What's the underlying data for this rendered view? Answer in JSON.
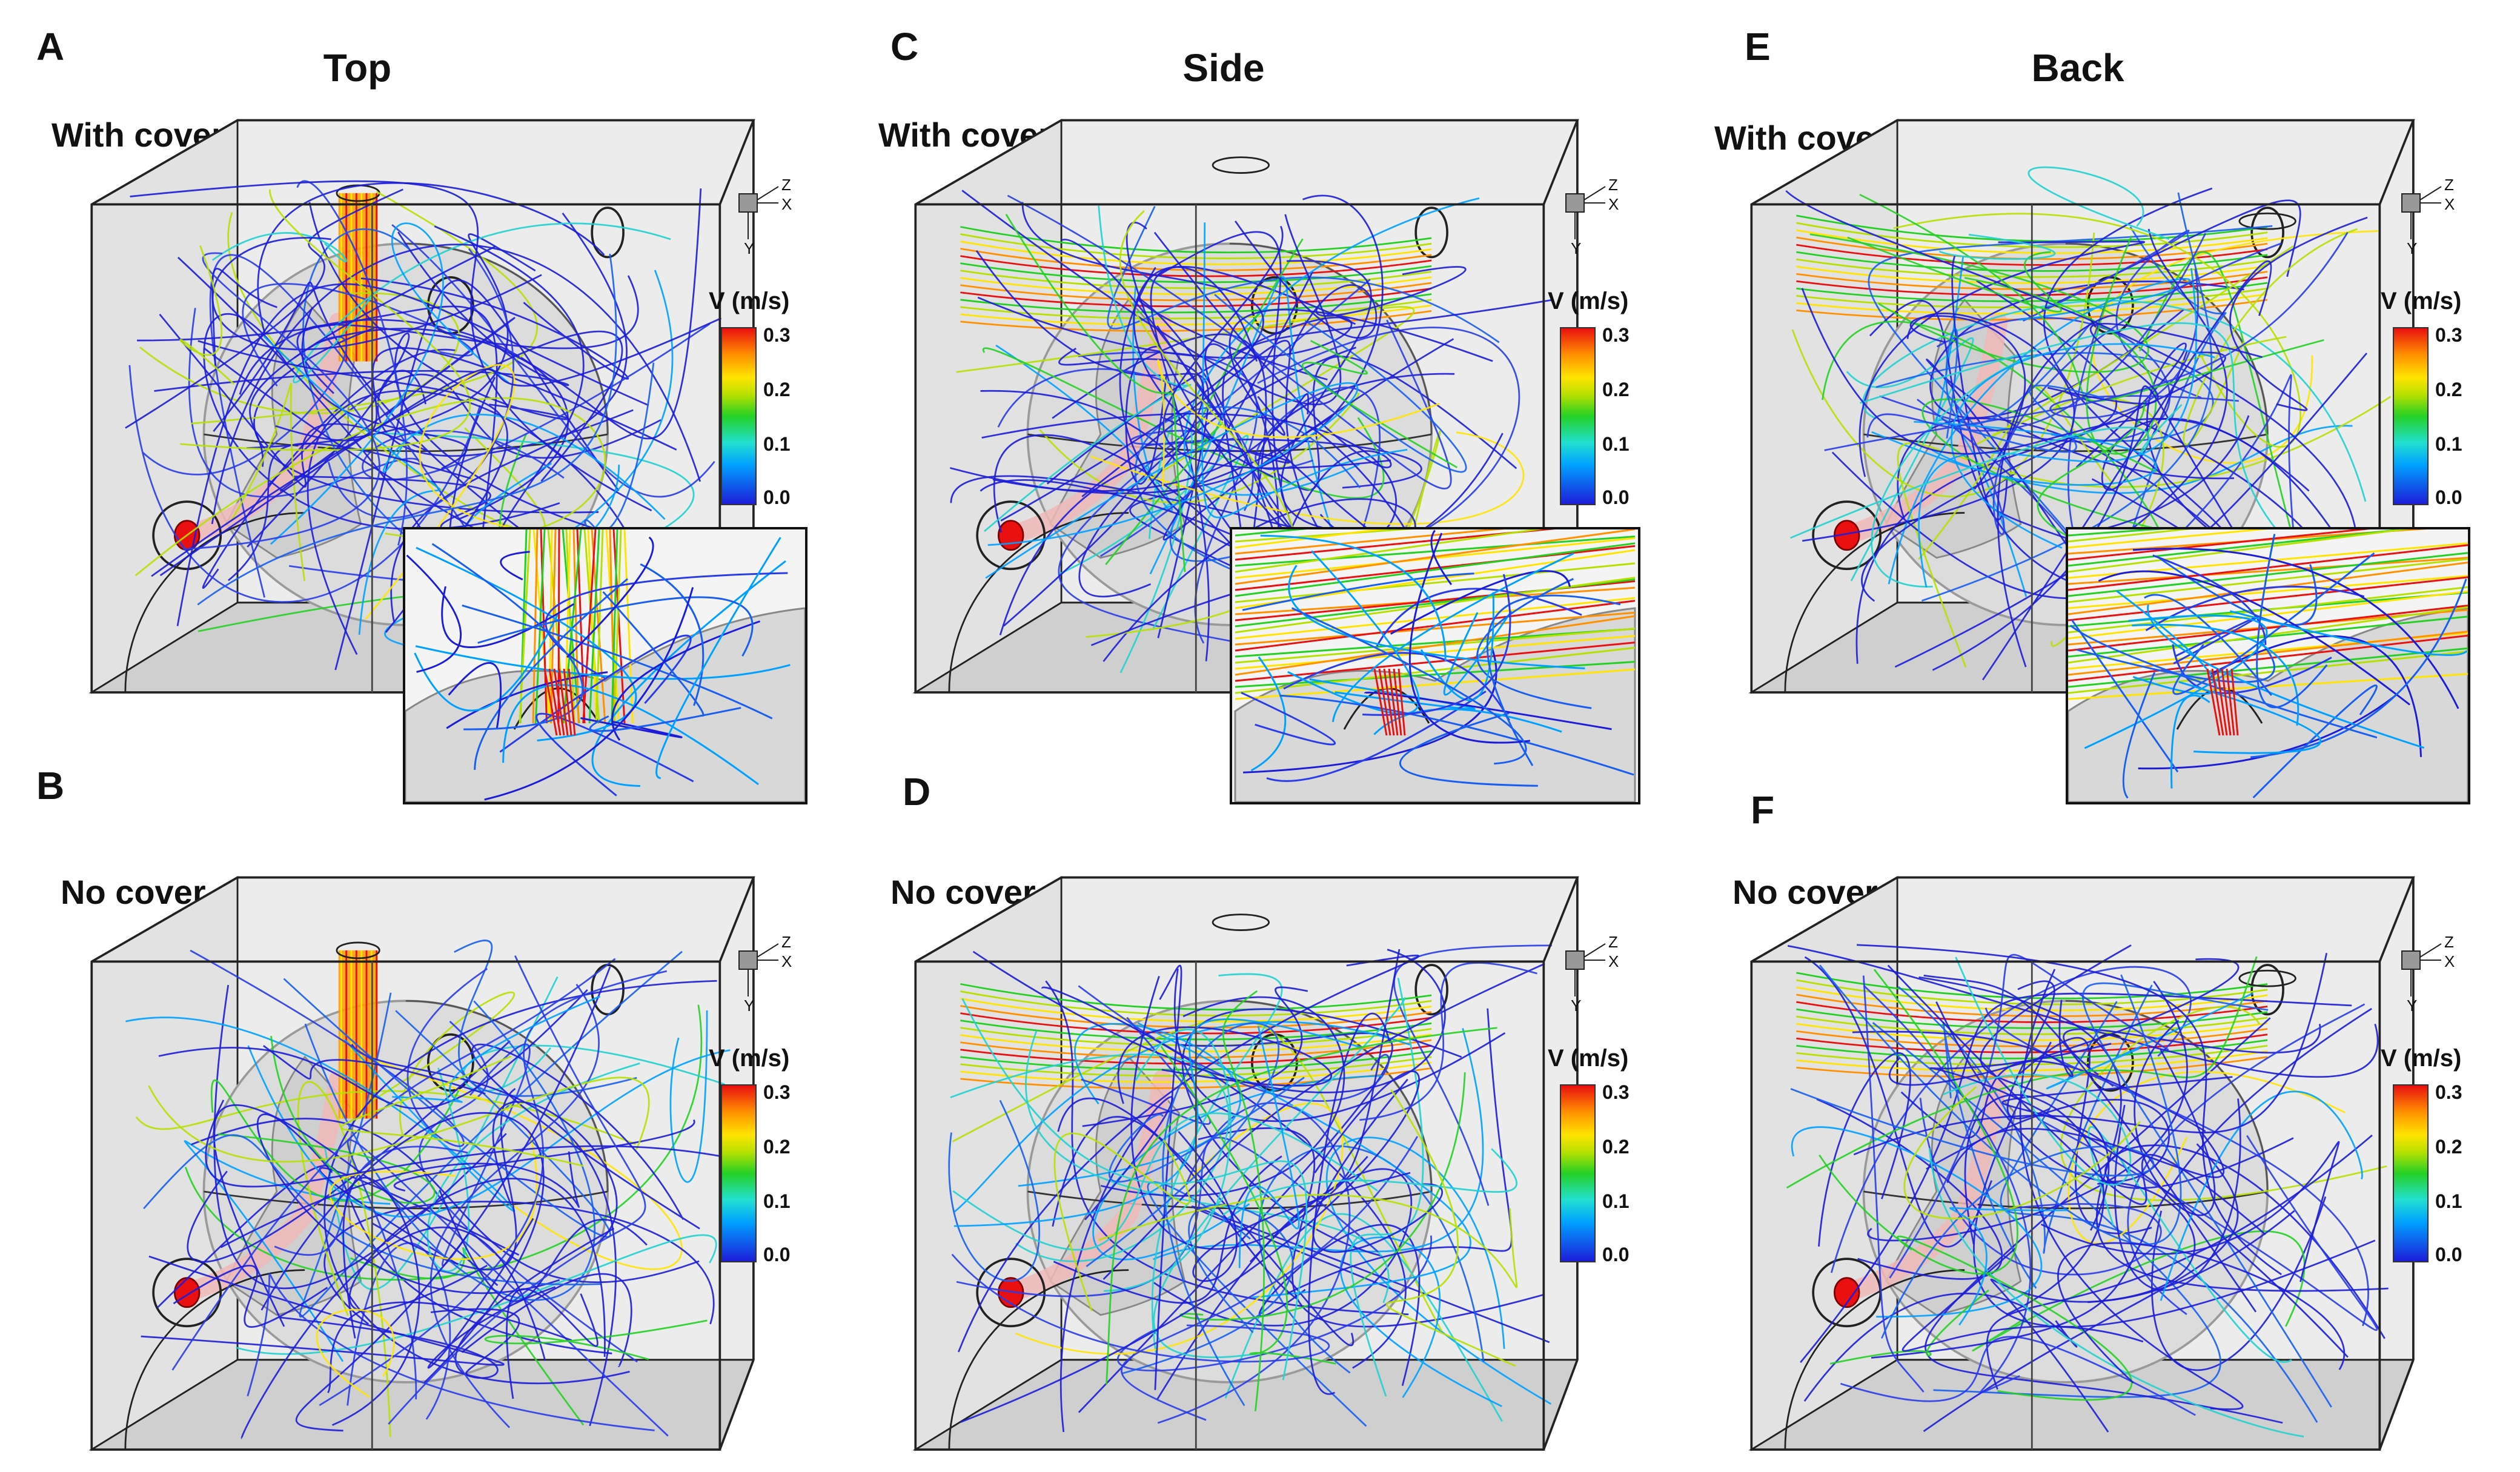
{
  "columns": [
    {
      "title": "Top"
    },
    {
      "title": "Side"
    },
    {
      "title": "Back"
    }
  ],
  "panels": [
    {
      "letter": "A",
      "label": "With cover"
    },
    {
      "letter": "B",
      "label": "No cover"
    },
    {
      "letter": "C",
      "label": "With cover"
    },
    {
      "letter": "D",
      "label": "No cover"
    },
    {
      "letter": "E",
      "label": "With cover"
    },
    {
      "letter": "F",
      "label": "No cover"
    }
  ],
  "legend": {
    "title": "V (m/s)",
    "ticks": [
      "0.3",
      "0.2",
      "0.1",
      "0.0"
    ]
  },
  "axis_labels": {
    "z": "Z",
    "x": "X",
    "y": "Y"
  },
  "colors": {
    "low": "#1d1dd8",
    "mid_low": "#00a0ff",
    "mid": "#25d025",
    "mid_high": "#ffe400",
    "high": "#e81010",
    "box_edge": "#222222",
    "box_floor": "#cfcfcf",
    "box_wall": "#ececec",
    "head": "#dcdcdc"
  }
}
